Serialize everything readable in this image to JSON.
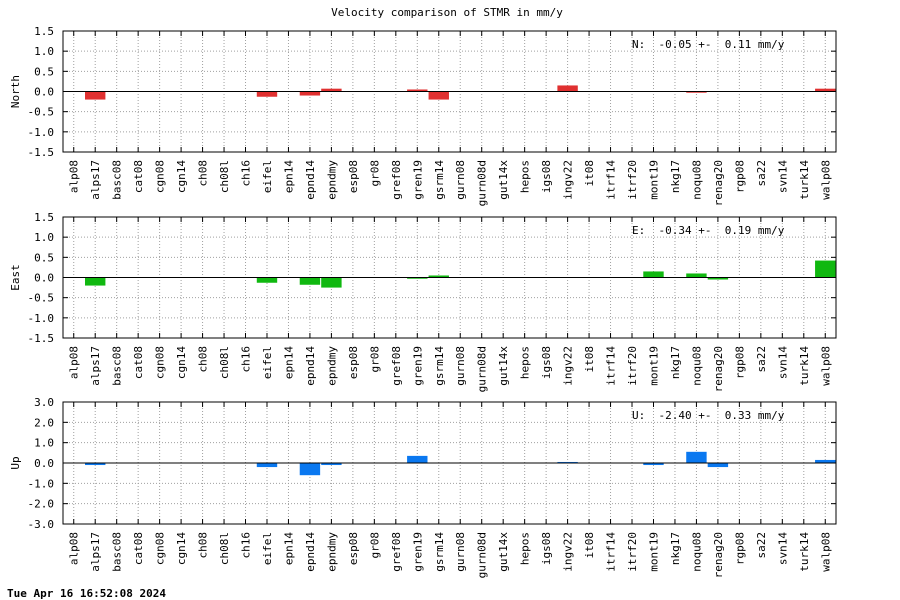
{
  "title": "Velocity comparison of STMR in mm/y",
  "footer": "Tue Apr 16 16:52:08 2024",
  "chart_data": {
    "type": "bar",
    "categories": [
      "alp08",
      "alps17",
      "basc08",
      "cat08",
      "cgn08",
      "cgn14",
      "ch08",
      "ch08l",
      "ch16",
      "eifel",
      "epn14",
      "epnd14",
      "epndmy",
      "esp08",
      "gr08",
      "gref08",
      "gren19",
      "gsrm14",
      "gurn08",
      "gurn08d",
      "gut14x",
      "hepos",
      "igs08",
      "ingv22",
      "it08",
      "itrf14",
      "itrf20",
      "mont19",
      "nkg17",
      "noqu08",
      "renag20",
      "rgp08",
      "sa22",
      "svn14",
      "turk14",
      "walp08"
    ],
    "grid": true,
    "panels": [
      {
        "ylabel": "North",
        "annotation": "N:  -0.05 +-  0.11 mm/y",
        "color": "#e03030",
        "ylim": [
          -1.5,
          1.5
        ],
        "ticks": [
          1.5,
          1.0,
          0.5,
          0.0,
          -0.5,
          -1.0,
          -1.5
        ],
        "tick_labels": [
          "1.5",
          "1.0",
          "0.5",
          "0.0",
          "-0.5",
          "-1.0",
          "-1.5"
        ],
        "values": [
          0,
          -0.2,
          0,
          0,
          0,
          0,
          0,
          0,
          0,
          -0.13,
          0,
          -0.1,
          0.07,
          0,
          0,
          0,
          0.05,
          -0.2,
          0,
          0,
          0,
          0,
          0,
          0.15,
          0,
          0,
          0,
          0,
          0,
          -0.03,
          0,
          0,
          0,
          0,
          0,
          0.07
        ]
      },
      {
        "ylabel": "East",
        "annotation": "E:  -0.34 +-  0.19 mm/y",
        "color": "#10b810",
        "ylim": [
          -1.5,
          1.5
        ],
        "ticks": [
          1.5,
          1.0,
          0.5,
          0.0,
          -0.5,
          -1.0,
          -1.5
        ],
        "tick_labels": [
          "1.5",
          "1.0",
          "0.5",
          "0.0",
          "-0.5",
          "-1.0",
          "-1.5"
        ],
        "values": [
          0,
          -0.2,
          0,
          0,
          0,
          0,
          0,
          0,
          0,
          -0.13,
          0,
          -0.18,
          -0.25,
          0,
          0,
          0,
          -0.03,
          0.05,
          0,
          0,
          0,
          0,
          0,
          0,
          0,
          0,
          0,
          0.15,
          0,
          0.1,
          -0.05,
          0,
          0,
          0,
          0,
          0.42
        ]
      },
      {
        "ylabel": "Up",
        "annotation": "U:  -2.40 +-  0.33 mm/y",
        "color": "#0a78f0",
        "ylim": [
          -3.0,
          3.0
        ],
        "ticks": [
          3.0,
          2.0,
          1.0,
          0.0,
          -1.0,
          -2.0,
          -3.0
        ],
        "tick_labels": [
          "3.0",
          "2.0",
          "1.0",
          "0.0",
          "-1.0",
          "-2.0",
          "-3.0"
        ],
        "values": [
          0,
          -0.1,
          0,
          0,
          0,
          0,
          0,
          0,
          0,
          -0.2,
          0,
          -0.6,
          -0.1,
          0,
          0,
          0,
          0.35,
          0,
          0,
          0,
          0,
          0,
          0,
          0.05,
          0,
          0,
          0,
          -0.1,
          0,
          0.55,
          -0.2,
          0,
          0,
          0,
          0,
          0.15
        ]
      }
    ]
  }
}
